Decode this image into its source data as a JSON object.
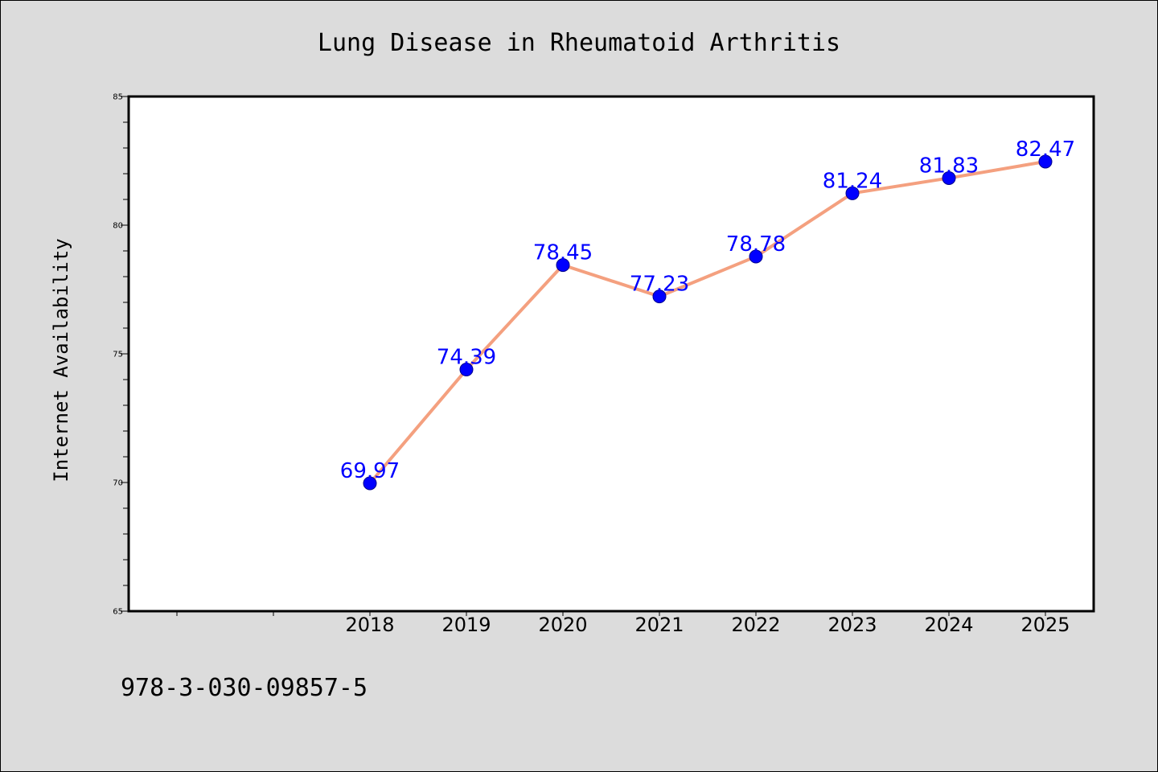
{
  "chart_data": {
    "type": "line",
    "title": "Lung Disease in Rheumatoid Arthritis",
    "xlabel": "",
    "ylabel": "Internet Availability",
    "categories": [
      "2018",
      "2019",
      "2020",
      "2021",
      "2022",
      "2023",
      "2024",
      "2025"
    ],
    "series": [
      {
        "values": [
          69.97,
          74.39,
          78.45,
          77.23,
          78.78,
          81.24,
          81.83,
          82.47
        ],
        "data_labels": [
          "69.97",
          "74.39",
          "78.45",
          "77.23",
          "78.78",
          "81.24",
          "81.83",
          "82.47"
        ]
      }
    ],
    "ylim": [
      65,
      85
    ],
    "xlim": [
      2015.5,
      2025.5
    ],
    "y_ticks": [
      "65",
      "70",
      "75",
      "80",
      "85"
    ],
    "grid": false,
    "colors": {
      "line": "#f4a07f",
      "marker": "#0000ff",
      "data_label": "#0000ff",
      "background": "#dcdcdc",
      "plot_background": "#ffffff"
    }
  },
  "footer": {
    "text": "978-3-030-09857-5"
  }
}
